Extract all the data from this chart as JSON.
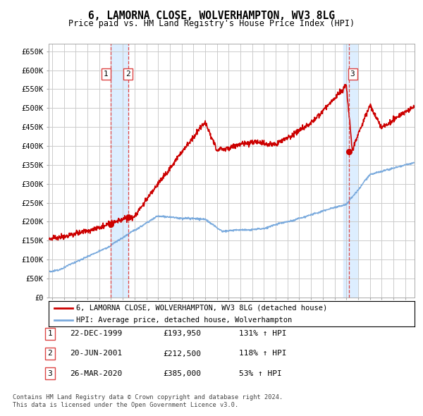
{
  "title": "6, LAMORNA CLOSE, WOLVERHAMPTON, WV3 8LG",
  "subtitle": "Price paid vs. HM Land Registry's House Price Index (HPI)",
  "legend_line1": "6, LAMORNA CLOSE, WOLVERHAMPTON, WV3 8LG (detached house)",
  "legend_line2": "HPI: Average price, detached house, Wolverhampton",
  "transactions": [
    {
      "num": 1,
      "date": "22-DEC-1999",
      "price": 193950,
      "pct": "131%",
      "dir": "↑",
      "ref": "HPI",
      "year": 1999.97
    },
    {
      "num": 2,
      "date": "20-JUN-2001",
      "price": 212500,
      "pct": "118%",
      "dir": "↑",
      "ref": "HPI",
      "year": 2001.47
    },
    {
      "num": 3,
      "date": "26-MAR-2020",
      "price": 385000,
      "pct": "53%",
      "dir": "↑",
      "ref": "HPI",
      "year": 2020.23
    }
  ],
  "footer1": "Contains HM Land Registry data © Crown copyright and database right 2024.",
  "footer2": "This data is licensed under the Open Government Licence v3.0.",
  "hpi_color": "#7aaadd",
  "price_color": "#cc0000",
  "vline_color": "#dd4444",
  "highlight_color": "#ddeeff",
  "grid_color": "#cccccc",
  "bg_color": "#ffffff",
  "ylim": [
    0,
    670000
  ],
  "yticks": [
    0,
    50000,
    100000,
    150000,
    200000,
    250000,
    300000,
    350000,
    400000,
    450000,
    500000,
    550000,
    600000,
    650000
  ],
  "xlim_start": 1994.7,
  "xlim_end": 2025.8
}
